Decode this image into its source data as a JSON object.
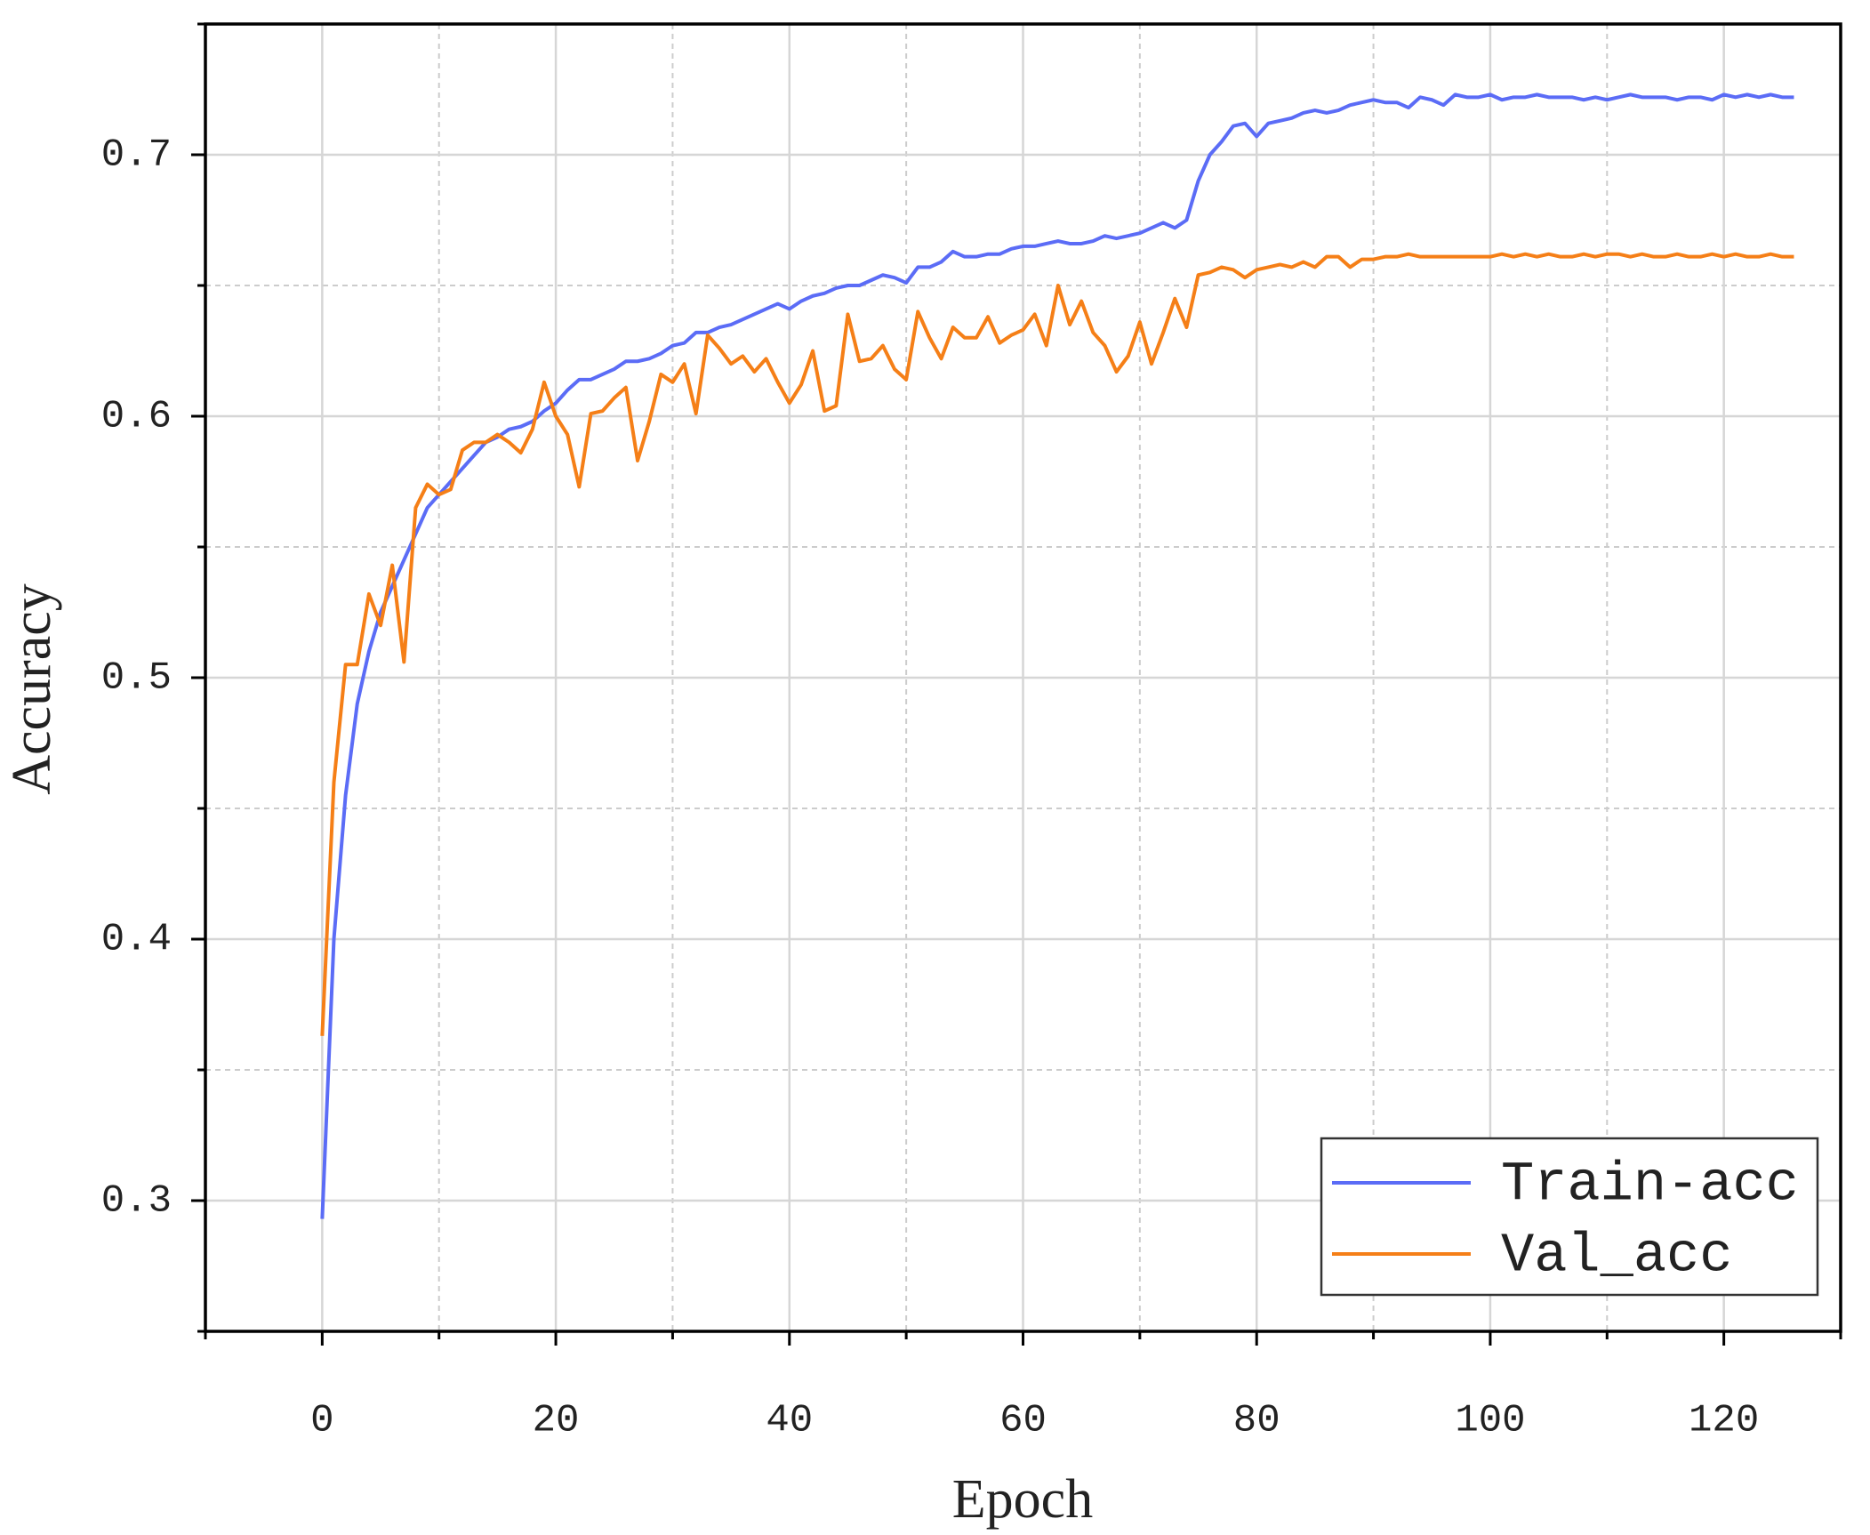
{
  "chart_data": {
    "type": "line",
    "x_label": "Epoch",
    "y_label": "Accuracy",
    "xlim": [
      -10,
      130
    ],
    "xticks": [
      0,
      20,
      40,
      60,
      80,
      100,
      120
    ],
    "xminor_ticks": [
      -10,
      10,
      30,
      50,
      70,
      90,
      110,
      130
    ],
    "ylim": [
      0.25,
      0.75
    ],
    "yticks": [
      0.3,
      0.4,
      0.5,
      0.6,
      0.7
    ],
    "yminor_ticks": [
      0.25,
      0.35,
      0.45,
      0.55,
      0.65,
      0.75
    ],
    "grid": true,
    "legend": "lower right",
    "x": [
      0,
      1,
      2,
      3,
      4,
      5,
      6,
      7,
      8,
      9,
      10,
      11,
      12,
      13,
      14,
      15,
      16,
      17,
      18,
      19,
      20,
      21,
      22,
      23,
      24,
      25,
      26,
      27,
      28,
      29,
      30,
      31,
      32,
      33,
      34,
      35,
      36,
      37,
      38,
      39,
      40,
      41,
      42,
      43,
      44,
      45,
      46,
      47,
      48,
      49,
      50,
      51,
      52,
      53,
      54,
      55,
      56,
      57,
      58,
      59,
      60,
      61,
      62,
      63,
      64,
      65,
      66,
      67,
      68,
      69,
      70,
      71,
      72,
      73,
      74,
      75,
      76,
      77,
      78,
      79,
      80,
      81,
      82,
      83,
      84,
      85,
      86,
      87,
      88,
      89,
      90,
      91,
      92,
      93,
      94,
      95,
      96,
      97,
      98,
      99,
      100,
      101,
      102,
      103,
      104,
      105,
      106,
      107,
      108,
      109,
      110,
      111,
      112,
      113,
      114,
      115,
      116,
      117,
      118,
      119,
      120,
      121,
      122,
      123,
      124,
      125,
      126
    ],
    "series": [
      {
        "name": "Train-acc",
        "color": "#5b6cf6",
        "values": [
          0.293,
          0.4,
          0.455,
          0.49,
          0.51,
          0.525,
          0.535,
          0.545,
          0.555,
          0.565,
          0.57,
          0.575,
          0.58,
          0.585,
          0.59,
          0.592,
          0.595,
          0.596,
          0.598,
          0.602,
          0.605,
          0.61,
          0.614,
          0.614,
          0.616,
          0.618,
          0.621,
          0.621,
          0.622,
          0.624,
          0.627,
          0.628,
          0.632,
          0.632,
          0.634,
          0.635,
          0.637,
          0.639,
          0.641,
          0.643,
          0.641,
          0.644,
          0.646,
          0.647,
          0.649,
          0.65,
          0.65,
          0.652,
          0.654,
          0.653,
          0.651,
          0.657,
          0.657,
          0.659,
          0.663,
          0.661,
          0.661,
          0.662,
          0.662,
          0.664,
          0.665,
          0.665,
          0.666,
          0.667,
          0.666,
          0.666,
          0.667,
          0.669,
          0.668,
          0.669,
          0.67,
          0.672,
          0.674,
          0.672,
          0.675,
          0.69,
          0.7,
          0.705,
          0.711,
          0.712,
          0.707,
          0.712,
          0.713,
          0.714,
          0.716,
          0.717,
          0.716,
          0.717,
          0.719,
          0.72,
          0.721,
          0.72,
          0.72,
          0.718,
          0.722,
          0.721,
          0.719,
          0.723,
          0.722,
          0.722,
          0.723,
          0.721,
          0.722,
          0.722,
          0.723,
          0.722,
          0.722,
          0.722,
          0.721,
          0.722,
          0.721,
          0.722,
          0.723,
          0.722,
          0.722,
          0.722,
          0.721,
          0.722,
          0.722,
          0.721,
          0.723,
          0.722,
          0.723,
          0.722,
          0.723,
          0.722,
          0.722
        ]
      },
      {
        "name": "Val_acc",
        "color": "#f57f17",
        "values": [
          0.363,
          0.46,
          0.505,
          0.505,
          0.532,
          0.52,
          0.543,
          0.506,
          0.565,
          0.574,
          0.57,
          0.572,
          0.587,
          0.59,
          0.59,
          0.593,
          0.59,
          0.586,
          0.595,
          0.613,
          0.6,
          0.593,
          0.573,
          0.601,
          0.602,
          0.607,
          0.611,
          0.583,
          0.598,
          0.616,
          0.613,
          0.62,
          0.601,
          0.631,
          0.626,
          0.62,
          0.623,
          0.617,
          0.622,
          0.613,
          0.605,
          0.612,
          0.625,
          0.602,
          0.604,
          0.639,
          0.621,
          0.622,
          0.627,
          0.618,
          0.614,
          0.64,
          0.63,
          0.622,
          0.634,
          0.63,
          0.63,
          0.638,
          0.628,
          0.631,
          0.633,
          0.639,
          0.627,
          0.65,
          0.635,
          0.644,
          0.632,
          0.627,
          0.617,
          0.623,
          0.636,
          0.62,
          0.632,
          0.645,
          0.634,
          0.654,
          0.655,
          0.657,
          0.656,
          0.653,
          0.656,
          0.657,
          0.658,
          0.657,
          0.659,
          0.657,
          0.661,
          0.661,
          0.657,
          0.66,
          0.66,
          0.661,
          0.661,
          0.662,
          0.661,
          0.661,
          0.661,
          0.661,
          0.661,
          0.661,
          0.661,
          0.662,
          0.661,
          0.662,
          0.661,
          0.662,
          0.661,
          0.661,
          0.662,
          0.661,
          0.662,
          0.662,
          0.661,
          0.662,
          0.661,
          0.661,
          0.662,
          0.661,
          0.661,
          0.662,
          0.661,
          0.662,
          0.661,
          0.661,
          0.662,
          0.661,
          0.661
        ]
      }
    ]
  }
}
